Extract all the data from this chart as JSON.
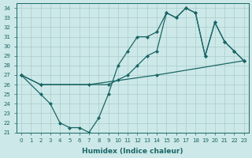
{
  "xlabel": "Humidex (Indice chaleur)",
  "ylabel": "",
  "bg_color": "#cde8e8",
  "grid_color": "#aacccc",
  "line_color": "#1a6666",
  "xlim": [
    -0.5,
    23.5
  ],
  "ylim": [
    21,
    34.5
  ],
  "xticks": [
    0,
    1,
    2,
    3,
    4,
    5,
    6,
    7,
    8,
    9,
    10,
    11,
    12,
    13,
    14,
    15,
    16,
    17,
    18,
    19,
    20,
    21,
    22,
    23
  ],
  "yticks": [
    21,
    22,
    23,
    24,
    25,
    26,
    27,
    28,
    29,
    30,
    31,
    32,
    33,
    34
  ],
  "line1_x": [
    0,
    2,
    7,
    14,
    23
  ],
  "line1_y": [
    27,
    26,
    26,
    27,
    28.5
  ],
  "line2_x": [
    0,
    2,
    3,
    4,
    5,
    6,
    7,
    8,
    9,
    10,
    11,
    12,
    13,
    14,
    15,
    16,
    17,
    18,
    19,
    20,
    21,
    22,
    23
  ],
  "line2_y": [
    27,
    25,
    24,
    22,
    21.5,
    21.5,
    21,
    22.5,
    25,
    28,
    29.5,
    31,
    31,
    31.5,
    33.5,
    33,
    34,
    33.5,
    29,
    32.5,
    30.5,
    29.5,
    28.5
  ],
  "line3_x": [
    0,
    2,
    9,
    10,
    11,
    12,
    13,
    14,
    15,
    16,
    17,
    18,
    19,
    20,
    21,
    22,
    23
  ],
  "line3_y": [
    27,
    26,
    26,
    26.5,
    27,
    28,
    29,
    29.5,
    33.5,
    33,
    34,
    33.5,
    29,
    32.5,
    30.5,
    29.5,
    28.5
  ]
}
